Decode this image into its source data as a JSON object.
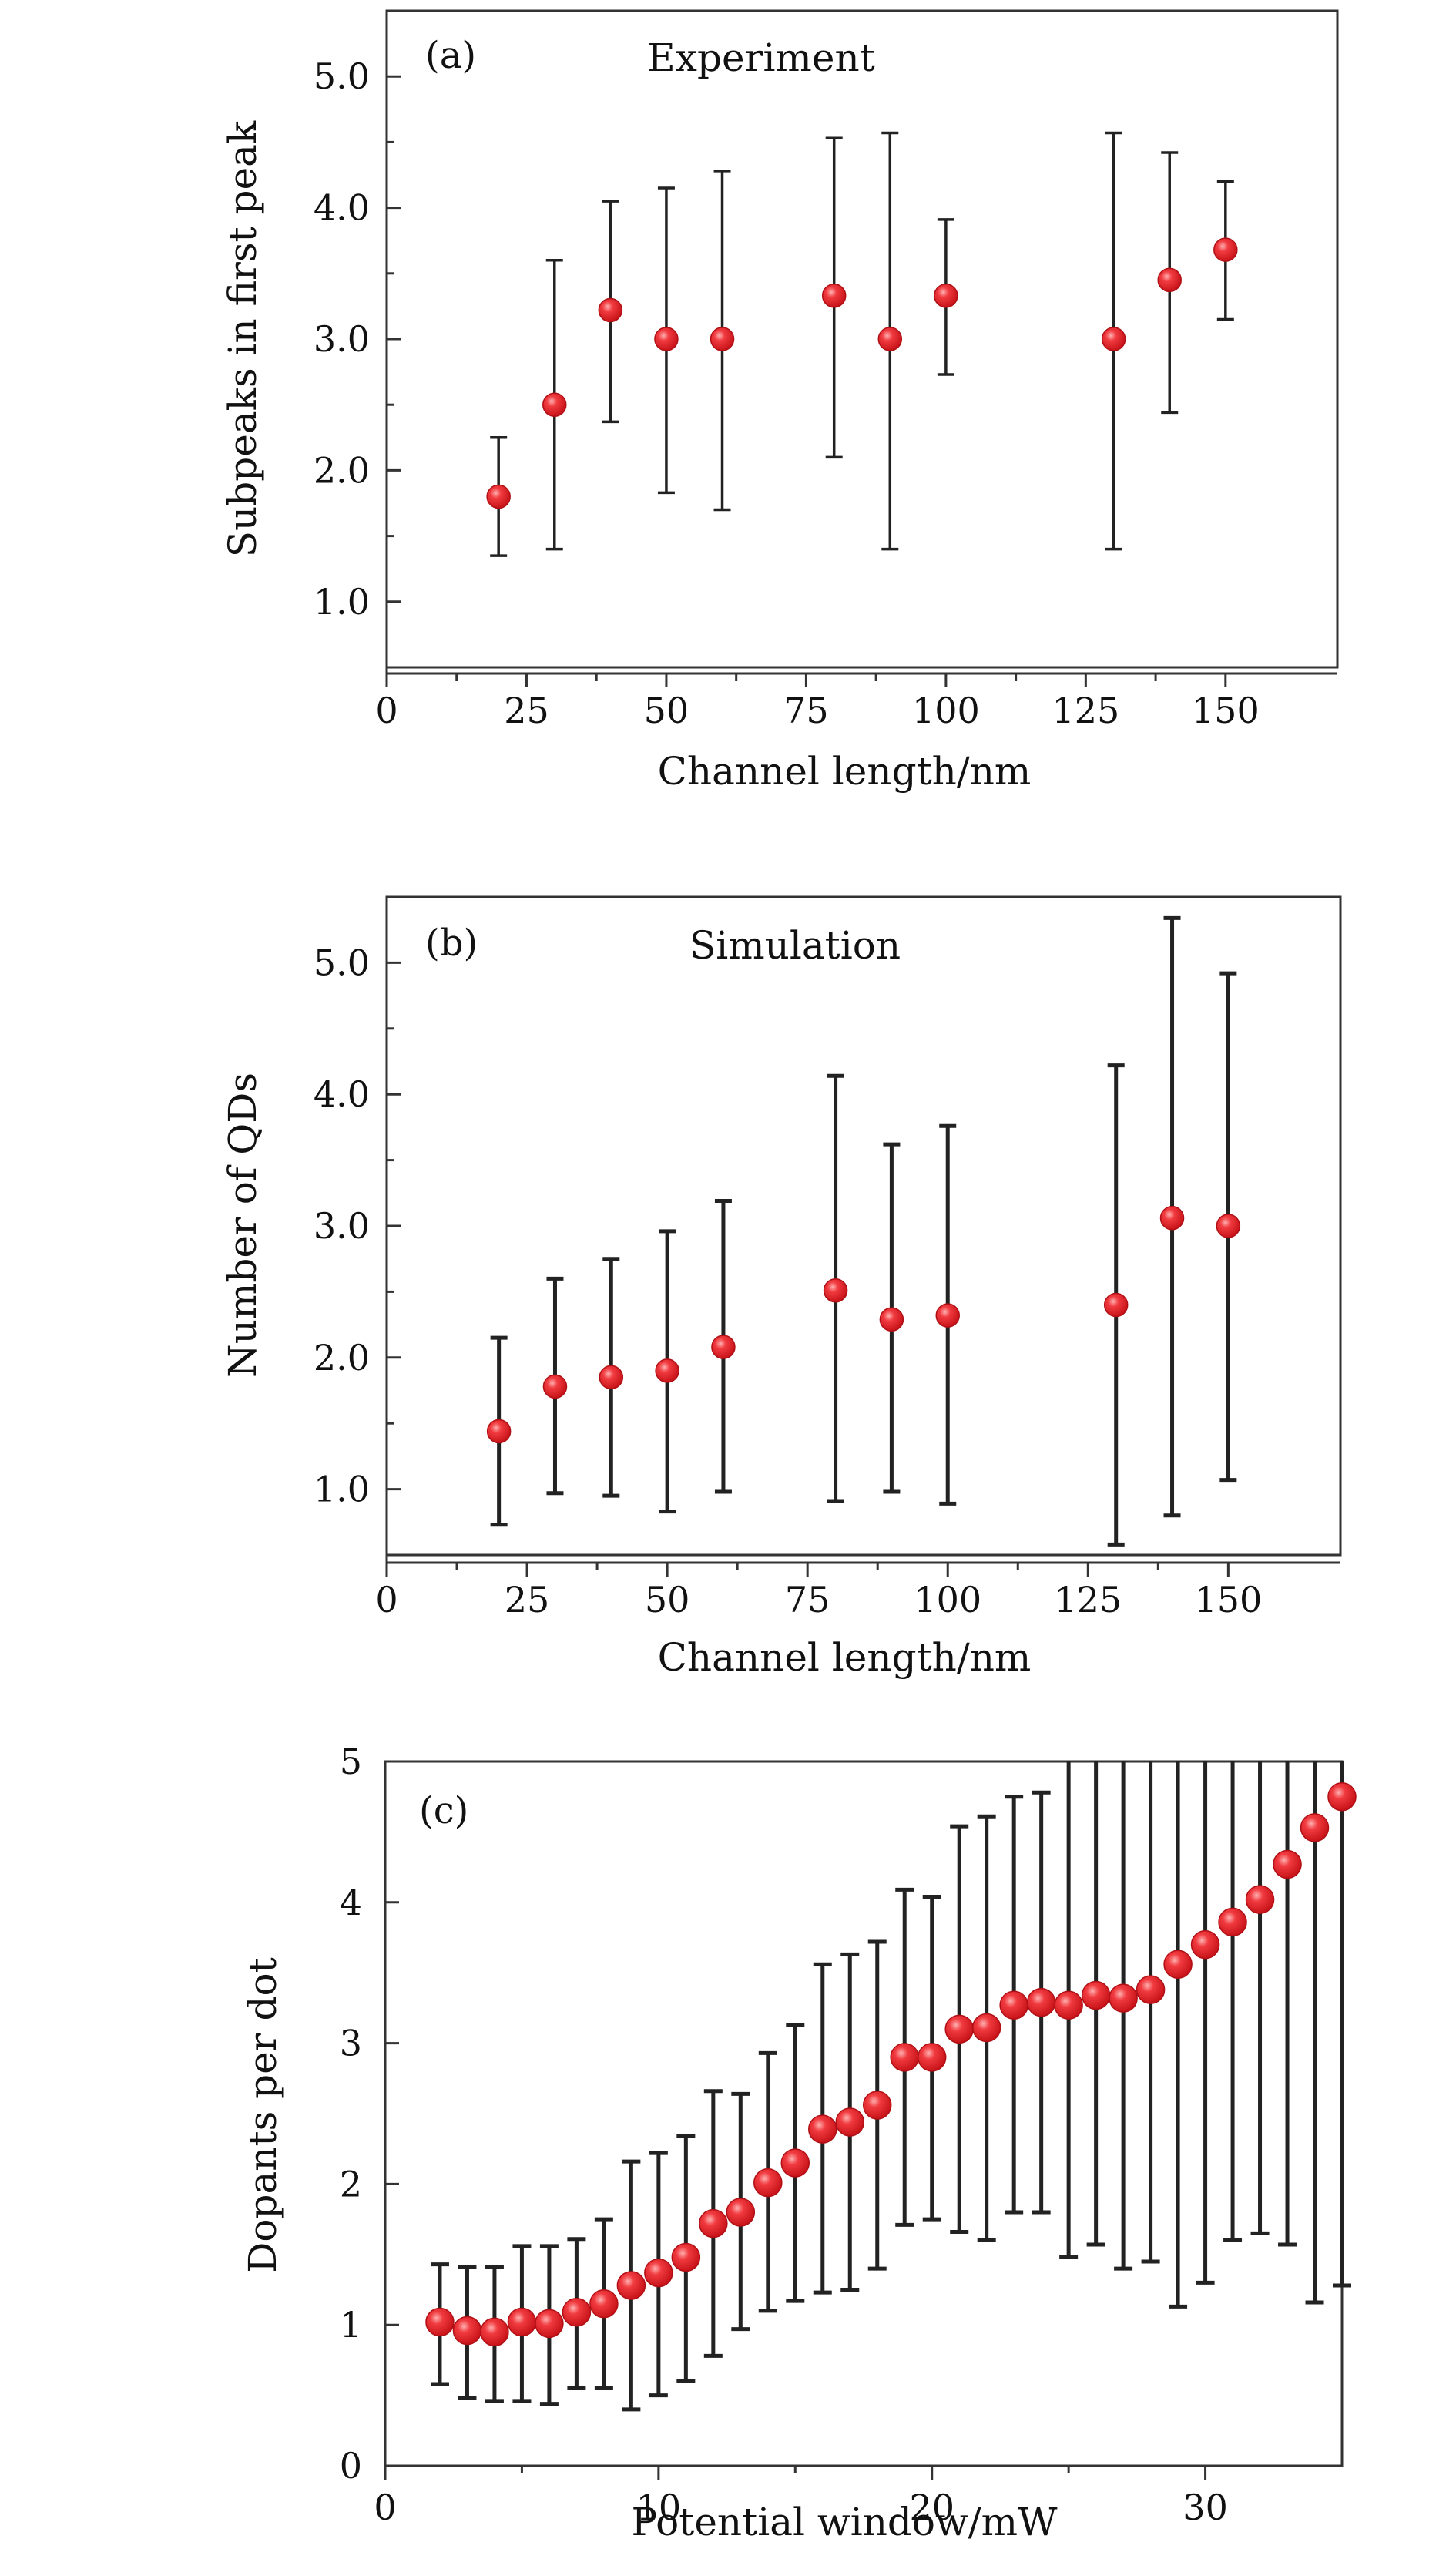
{
  "colors": {
    "marker": "#e8242a",
    "marker_highlight": "#ff9a9a",
    "axis": "#333333",
    "error_bar": "#222222"
  },
  "chart_data": [
    {
      "type": "scatter",
      "panel_label": "(a)",
      "title": "Experiment",
      "xlabel": "Channel length/nm",
      "ylabel": "Subpeaks in first peak",
      "xlim": [
        0,
        170
      ],
      "ylim": [
        0.5,
        5.5
      ],
      "xticks": [
        0,
        25,
        50,
        75,
        100,
        125,
        150
      ],
      "xtick_labels": [
        "0",
        "25",
        "50",
        "75",
        "100",
        "125",
        "150"
      ],
      "yticks": [
        1.0,
        2.0,
        3.0,
        4.0,
        5.0
      ],
      "ytick_labels": [
        "1.0",
        "2.0",
        "3.0",
        "4.0",
        "5.0"
      ],
      "x": [
        20,
        30,
        40,
        50,
        60,
        80,
        90,
        100,
        130,
        140,
        150
      ],
      "y": [
        1.8,
        2.5,
        3.22,
        3.0,
        3.0,
        3.33,
        3.0,
        3.33,
        3.0,
        3.45,
        3.68
      ],
      "err_low": [
        1.35,
        1.4,
        2.37,
        1.83,
        1.7,
        2.1,
        1.4,
        2.73,
        1.4,
        2.44,
        3.15
      ],
      "err_high": [
        2.25,
        3.6,
        4.05,
        4.15,
        4.28,
        4.53,
        4.57,
        3.91,
        4.57,
        4.42,
        4.2
      ]
    },
    {
      "type": "scatter",
      "panel_label": "(b)",
      "title": "Simulation",
      "xlabel": "Channel length/nm",
      "ylabel": "Number of QDs",
      "xlim": [
        0,
        170
      ],
      "ylim": [
        0.5,
        5.5
      ],
      "xticks": [
        0,
        25,
        50,
        75,
        100,
        125,
        150
      ],
      "xtick_labels": [
        "0",
        "25",
        "50",
        "75",
        "100",
        "125",
        "150"
      ],
      "yticks": [
        1.0,
        2.0,
        3.0,
        4.0,
        5.0
      ],
      "ytick_labels": [
        "1.0",
        "2.0",
        "3.0",
        "4.0",
        "5.0"
      ],
      "x": [
        20,
        30,
        40,
        50,
        60,
        80,
        90,
        100,
        130,
        140,
        150
      ],
      "y": [
        1.44,
        1.78,
        1.85,
        1.9,
        2.08,
        2.51,
        2.29,
        2.32,
        2.4,
        3.06,
        3.0
      ],
      "err_low": [
        0.73,
        0.97,
        0.95,
        0.83,
        0.98,
        0.91,
        0.98,
        0.89,
        0.58,
        0.8,
        1.07
      ],
      "err_high": [
        2.15,
        2.6,
        2.75,
        2.96,
        3.19,
        4.14,
        3.62,
        3.76,
        4.22,
        5.34,
        4.92
      ]
    },
    {
      "type": "scatter",
      "panel_label": "(c)",
      "title": "",
      "xlabel": "Potential window/mW",
      "ylabel": "Dopants per dot",
      "xlim": [
        0,
        35
      ],
      "ylim": [
        0,
        5
      ],
      "xticks": [
        0,
        10,
        20,
        30
      ],
      "xtick_labels": [
        "0",
        "10",
        "20",
        "30"
      ],
      "yticks": [
        0,
        1,
        2,
        3,
        4,
        5
      ],
      "ytick_labels": [
        "0",
        "1",
        "2",
        "3",
        "4",
        "5"
      ],
      "x": [
        2,
        3,
        4,
        5,
        6,
        7,
        8,
        9,
        10,
        11,
        12,
        13,
        14,
        15,
        16,
        17,
        18,
        19,
        20,
        21,
        22,
        23,
        24,
        25,
        26,
        27,
        28,
        29,
        30,
        31,
        32,
        33,
        34,
        35
      ],
      "y": [
        1.02,
        0.96,
        0.95,
        1.02,
        1.01,
        1.09,
        1.15,
        1.28,
        1.37,
        1.48,
        1.72,
        1.8,
        2.01,
        2.15,
        2.39,
        2.44,
        2.56,
        2.9,
        2.9,
        3.1,
        3.11,
        3.27,
        3.29,
        3.27,
        3.34,
        3.32,
        3.38,
        3.56,
        3.7,
        3.86,
        4.02,
        4.27,
        4.53,
        4.75
      ],
      "err_low": [
        0.58,
        0.48,
        0.46,
        0.46,
        0.44,
        0.55,
        0.55,
        0.4,
        0.5,
        0.6,
        0.78,
        0.97,
        1.1,
        1.17,
        1.23,
        1.25,
        1.4,
        1.71,
        1.75,
        1.66,
        1.6,
        1.8,
        1.8,
        1.48,
        1.57,
        1.4,
        1.45,
        1.13,
        1.3,
        1.6,
        1.65,
        1.57,
        1.16,
        1.28
      ],
      "err_high": [
        1.43,
        1.41,
        1.41,
        1.56,
        1.56,
        1.61,
        1.75,
        2.16,
        2.22,
        2.34,
        2.66,
        2.64,
        2.93,
        3.13,
        3.56,
        3.63,
        3.72,
        4.09,
        4.04,
        4.54,
        4.61,
        4.75,
        4.78,
        5.0,
        5.0,
        5.0,
        5.0,
        5.0,
        5.0,
        5.0,
        5.0,
        5.0,
        5.0,
        5.0
      ]
    }
  ]
}
